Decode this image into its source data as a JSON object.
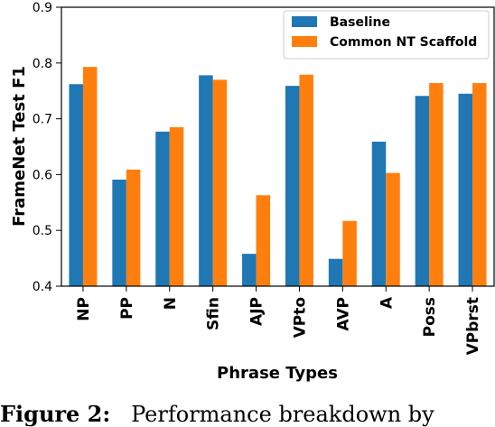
{
  "chart_data": {
    "type": "bar",
    "categories": [
      "NP",
      "PP",
      "N",
      "Sfin",
      "AJP",
      "VPto",
      "AVP",
      "A",
      "Poss",
      "VPbrst"
    ],
    "series": [
      {
        "name": "Baseline",
        "color": "#1f77b4",
        "values": [
          0.762,
          0.591,
          0.677,
          0.778,
          0.458,
          0.759,
          0.449,
          0.659,
          0.741,
          0.745
        ]
      },
      {
        "name": "Common NT Scaffold",
        "color": "#ff7f0e",
        "values": [
          0.793,
          0.609,
          0.685,
          0.77,
          0.563,
          0.779,
          0.517,
          0.603,
          0.764,
          0.764
        ]
      }
    ],
    "xlabel": "Phrase Types",
    "ylabel": "FrameNet Test F1",
    "ylim": [
      0.4,
      0.9
    ],
    "yticks": [
      "0.4",
      "0.5",
      "0.6",
      "0.7",
      "0.8",
      "0.9"
    ],
    "legend": "top-right",
    "grid": false
  },
  "caption": {
    "figure_label": "Figure 2:",
    "text": "Performance breakdown by"
  }
}
